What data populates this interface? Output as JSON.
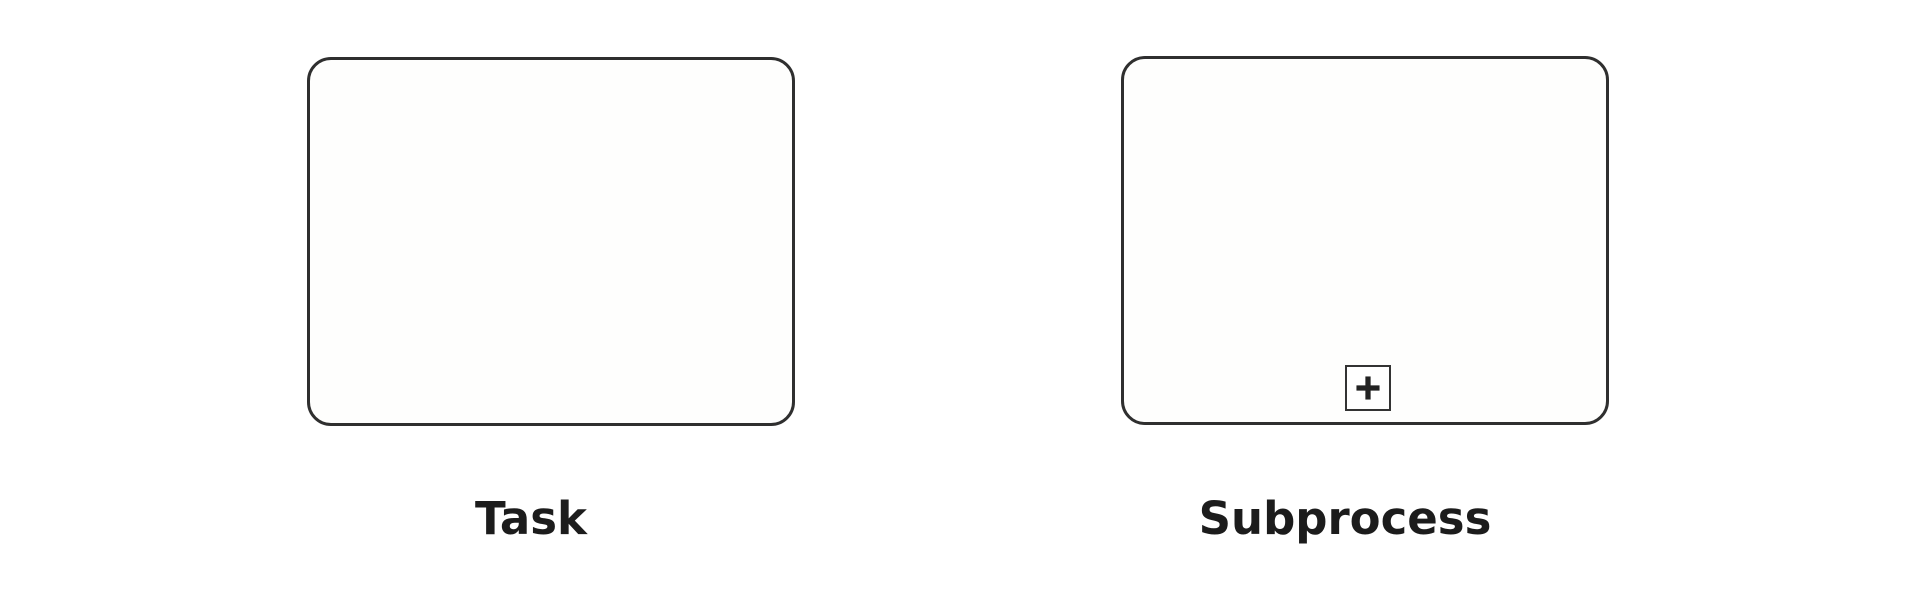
{
  "diagram": {
    "shapes": [
      {
        "id": "task",
        "label": "Task",
        "marker": ""
      },
      {
        "id": "subprocess",
        "label": "Subprocess",
        "marker": "plus-icon"
      }
    ]
  },
  "colors": {
    "stroke": "#2f2f2f",
    "fill": "#fefefd",
    "text": "#1c1c1c"
  }
}
